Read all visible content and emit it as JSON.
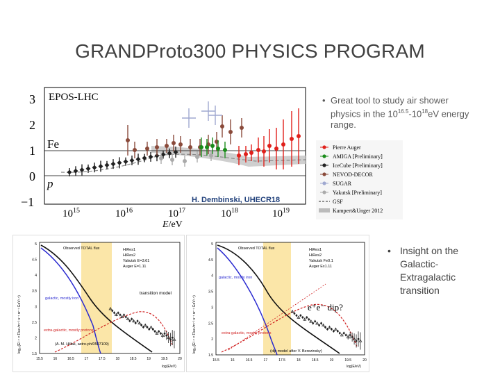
{
  "slide": {
    "title": "GRANDProto300 PHYSICS PROGRAM",
    "bullet1": {
      "prefix": "Great tool to study air shower physics in the 10",
      "exp1": "16.5",
      "mid": "-10",
      "exp2": "18",
      "suffix": "eV energy range."
    },
    "bullet2": {
      "lines": [
        "Insight on the",
        "Galactic-",
        "Extragalactic",
        "transition"
      ]
    }
  },
  "plot1": {
    "model_label": "EPOS-LHC",
    "fe_label": "Fe",
    "p_label": "p",
    "yticks": [
      "3",
      "2",
      "1",
      "0",
      "−1"
    ],
    "xticks": [
      {
        "base": "10",
        "exp": "15"
      },
      {
        "base": "10",
        "exp": "16"
      },
      {
        "base": "10",
        "exp": "17"
      },
      {
        "base": "10",
        "exp": "18"
      },
      {
        "base": "10",
        "exp": "19"
      }
    ],
    "xlabel_main": "E",
    "xlabel_unit": "/eV",
    "credit": "H. Dembinski, UHECR18",
    "legend": [
      {
        "label": "Pierre Auger",
        "color": "#e0201b"
      },
      {
        "label": "AMIGA [Preliminary]",
        "color": "#1a8c1a"
      },
      {
        "label": "IceCube [Preliminary]",
        "color": "#222222"
      },
      {
        "label": "NEVOD-DECOR",
        "color": "#8a4a3a"
      },
      {
        "label": "SUGAR",
        "color": "#9fa8d0"
      },
      {
        "label": "Yakutsk [Preliminary]",
        "color": "#aaaaaa"
      },
      {
        "label": "GSF",
        "color": "#555555"
      },
      {
        "label": "Kampert&Unger 2012",
        "color": "#bbbbbb"
      }
    ]
  },
  "plot2": {
    "legend": [
      "HiRes1",
      "HiRes2",
      "Yakutsk E=3.61",
      "Auger E=1.11"
    ],
    "observed": "Observed TOTAL flux",
    "galactic": "galactic, mostly iron",
    "extragalactic": "extra-galactic, mostly protons",
    "model": "transition model",
    "citation": "(A. M. Hillas, astro-ph/0507109)",
    "ylabel": "log₁₀(E²·⁵ × Flux /m⁻² s⁻¹ sr⁻¹ GeV¹·⁵)",
    "xlabel": "log(E/eV)",
    "yticks": [
      "5",
      "4.5",
      "4",
      "3.5",
      "3",
      "2.5",
      "2",
      "1.5"
    ],
    "xticks": [
      "15.5",
      "16",
      "16.5",
      "17",
      "17.5",
      "18",
      "18.5",
      "19",
      "19.5",
      "20"
    ]
  },
  "plot3": {
    "legend": [
      "HiRes1",
      "HiRes2",
      "Yakutsk Fe0.1",
      "Auger Ex1.11"
    ],
    "observed": "Observed TOTAL flux",
    "galactic": "galactic, mostly iron",
    "extragalactic": "extra-galactic, mostly protons",
    "dip": "e⁺e⁻ dip?",
    "citation": "(dip model after V. Berezinsky)",
    "ylabel": "log₁₀(E²·⁵ × Flux /m⁻² s⁻¹ sr⁻¹ GeV¹·⁵)",
    "xlabel": "log(E/eV)",
    "yticks": [
      "5",
      "4.5",
      "4",
      "3.5",
      "3",
      "2.5",
      "2",
      "1.5"
    ],
    "xticks": [
      "15.5",
      "16",
      "16.5",
      "17",
      "17.5",
      "18",
      "18.5",
      "19",
      "19.5",
      "20"
    ]
  }
}
